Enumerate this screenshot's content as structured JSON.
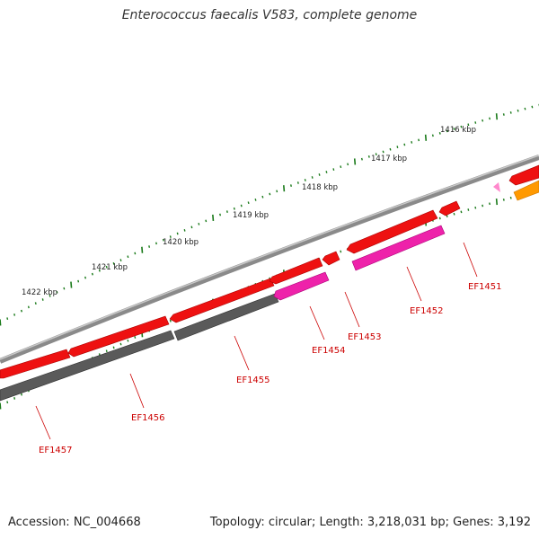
{
  "title": "Enterococcus faecalis V583, complete genome",
  "footer": {
    "accession": "Accession: NC_004668",
    "summary": "Topology: circular; Length: 3,218,031 bp; Genes: 3,192"
  },
  "colors": {
    "backbone": "#8a8a8a",
    "forward_gene": "#ee1111",
    "reverse_gene": "#5a5a5a",
    "highlight_gene": "#ee22aa",
    "orange_gene": "#ff9900",
    "tick": "#1a7a1a",
    "label": "#cc0000"
  },
  "position_ticks": [
    {
      "label": "1416 kbp"
    },
    {
      "label": "1417 kbp"
    },
    {
      "label": "1418 kbp"
    },
    {
      "label": "1419 kbp"
    },
    {
      "label": "1420 kbp"
    },
    {
      "label": "1421 kbp"
    },
    {
      "label": "1422 kbp"
    }
  ],
  "genes": [
    {
      "label": "EF1451"
    },
    {
      "label": "EF1452"
    },
    {
      "label": "EF1453"
    },
    {
      "label": "EF1454"
    },
    {
      "label": "EF1455"
    },
    {
      "label": "EF1456"
    },
    {
      "label": "EF1457"
    }
  ]
}
